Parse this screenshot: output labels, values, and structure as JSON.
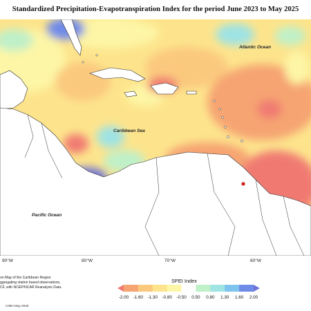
{
  "title": "Standardized Precipitation-Evapotranspiration Index for the period June 2023 to May 2025",
  "ocean_labels": {
    "atlantic": "Atlantic Ocean",
    "caribbean": "Caribbean Sea",
    "pacific": "Pacific Ocean"
  },
  "longitude_ticks": [
    "90°W",
    "80°W",
    "70°W",
    "60°W"
  ],
  "note_lines": [
    "on Map of the Caribbean Region",
    "ggregating station based observations,",
    "CF, with NCEP/NCAR Reanalysis Data."
  ],
  "credit": "CIMH May-2025",
  "legend": {
    "title": "SPEI Index",
    "labels": [
      "-2.00",
      "-1.60",
      "-1.30",
      "-0.80",
      "-0.50",
      "0.50",
      "0.80",
      "1.30",
      "1.60",
      "2.00"
    ],
    "colors": [
      "#f07a72",
      "#f6a472",
      "#fbc97e",
      "#fde48c",
      "#fdf6a6",
      "#ffffff",
      "#bff0c8",
      "#9fe3e3",
      "#7fc4ee",
      "#6f8be8",
      "#6f74d8"
    ]
  },
  "colors": {
    "land": "#ffffff",
    "coastline": "#2a2a2a",
    "very_dry": "#f07a72",
    "dry": "#f6a472",
    "moderately_dry": "#fbc97e",
    "slightly_dry": "#fde48c",
    "near_normal": "#fdf6a6",
    "slightly_wet": "#bff0c8",
    "wet": "#9fe3e3",
    "very_wet": "#6f74d8"
  }
}
